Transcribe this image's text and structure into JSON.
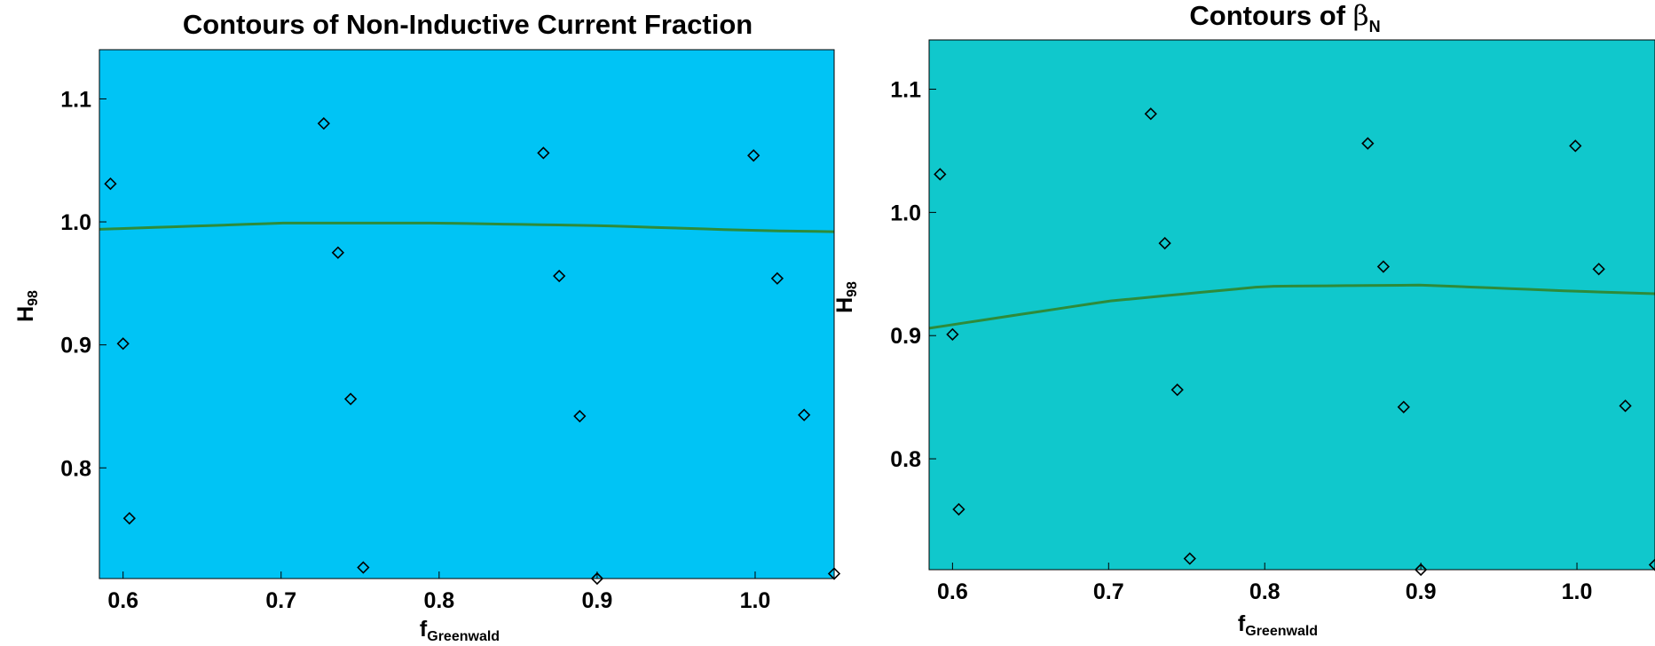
{
  "chart_data": [
    {
      "type": "contour",
      "title": "Contours of Non-Inductive Current Fraction",
      "xlabel": {
        "main": "f",
        "sub": "Greenwald"
      },
      "ylabel": {
        "main": "H",
        "sub": "98"
      },
      "xlim": [
        0.585,
        1.05
      ],
      "ylim": [
        0.71,
        1.14
      ],
      "xticks": [
        0.6,
        0.7,
        0.8,
        0.9,
        1.0
      ],
      "yticks": [
        0.8,
        0.9,
        1.0,
        1.1
      ],
      "colormap": [
        "#00c4f5",
        "#0a5cf5",
        "#2a10ee",
        "#7a10f0",
        "#cc10ee",
        "#ff10c0",
        "#ff0a48"
      ],
      "contour_levels": 40,
      "highlight_contour": {
        "color": "#2e8b3a",
        "x": [
          0.585,
          0.7,
          0.8,
          0.9,
          1.0,
          1.05
        ],
        "y": [
          0.994,
          0.999,
          0.999,
          0.997,
          0.993,
          0.992
        ]
      },
      "points": {
        "marker": "diamond",
        "x": [
          0.592,
          0.6,
          0.604,
          0.727,
          0.736,
          0.744,
          0.752,
          0.866,
          0.876,
          0.889,
          0.9,
          0.999,
          1.014,
          1.031,
          1.05
        ],
        "y": [
          1.031,
          0.901,
          0.759,
          1.08,
          0.975,
          0.856,
          0.719,
          1.056,
          0.956,
          0.842,
          0.71,
          1.054,
          0.954,
          0.843,
          0.714
        ]
      }
    },
    {
      "type": "contour",
      "title": {
        "main": "Contours of ",
        "symbol": "β",
        "sub": "N"
      },
      "xlabel": {
        "main": "f",
        "sub": "Greenwald"
      },
      "ylabel": {
        "main": "H",
        "sub": "98"
      },
      "xlim": [
        0.585,
        1.05
      ],
      "ylim": [
        0.71,
        1.14
      ],
      "xticks": [
        0.6,
        0.7,
        0.8,
        0.9,
        1.0
      ],
      "yticks": [
        0.8,
        0.9,
        1.0,
        1.1
      ],
      "colormap": [
        "#10c8cc",
        "#00f6f6",
        "#00c8f5",
        "#0090f4",
        "#0044f0",
        "#1010ee",
        "#6a10f4"
      ],
      "contour_levels": 24,
      "highlight_contour": {
        "color": "#2e8b3a",
        "x": [
          0.585,
          0.7,
          0.8,
          0.9,
          1.0,
          1.05
        ],
        "y": [
          0.906,
          0.928,
          0.94,
          0.941,
          0.936,
          0.934
        ]
      },
      "points": {
        "marker": "diamond",
        "x": [
          0.592,
          0.6,
          0.604,
          0.727,
          0.736,
          0.744,
          0.752,
          0.866,
          0.876,
          0.889,
          0.9,
          0.999,
          1.014,
          1.031,
          1.05
        ],
        "y": [
          1.031,
          0.901,
          0.759,
          1.08,
          0.975,
          0.856,
          0.719,
          1.056,
          0.956,
          0.842,
          0.71,
          1.054,
          0.954,
          0.843,
          0.714
        ]
      }
    }
  ]
}
